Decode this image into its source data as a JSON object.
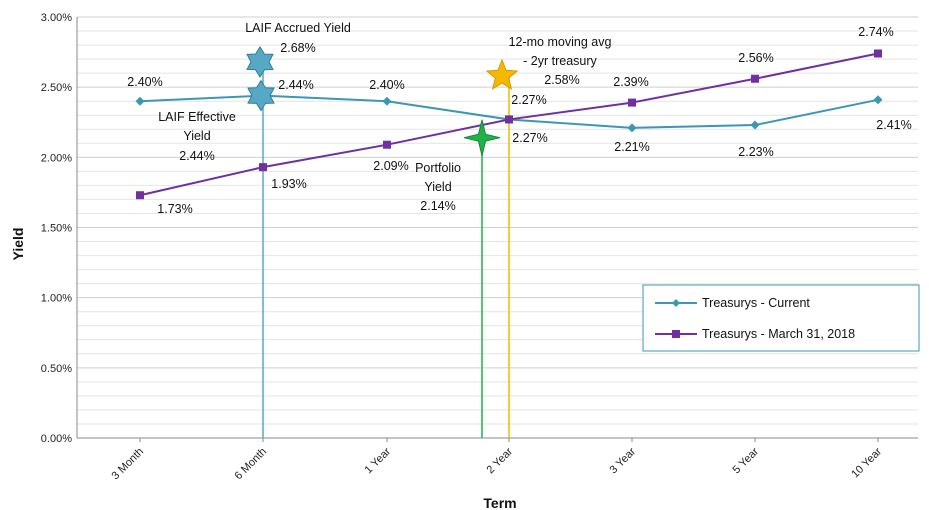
{
  "chart_data": {
    "type": "line",
    "xlabel": "Term",
    "ylabel": "Yield",
    "ylim": [
      0,
      3
    ],
    "y_ticks": [
      "0.00%",
      "0.50%",
      "1.00%",
      "1.50%",
      "2.00%",
      "2.50%",
      "3.00%"
    ],
    "y_tick_values": [
      0,
      0.5,
      1.0,
      1.5,
      2.0,
      2.5,
      3.0
    ],
    "categories": [
      "3 Month",
      "6 Month",
      "1 Year",
      "2 Year",
      "3 Year",
      "5 Year",
      "10 Year"
    ],
    "grid": "horizontal",
    "legend_position": "bottom-right",
    "series": [
      {
        "name": "Treasurys - Current",
        "color": "#3c97b4",
        "marker": "diamond",
        "values": [
          2.4,
          2.44,
          2.4,
          2.27,
          2.21,
          2.23,
          2.41
        ],
        "labels": [
          "2.40%",
          "2.44%",
          "2.40%",
          "2.27%",
          "2.21%",
          "2.23%",
          "2.41%"
        ]
      },
      {
        "name": "Treasurys - March 31, 2018",
        "color": "#7030a0",
        "marker": "square",
        "values": [
          1.73,
          1.93,
          2.09,
          2.27,
          2.39,
          2.56,
          2.74
        ],
        "labels": [
          "1.73%",
          "1.93%",
          "2.09%",
          "2.27%",
          "2.39%",
          "2.56%",
          "2.74%"
        ]
      }
    ],
    "annotations": [
      {
        "id": "laif-accrued",
        "text_lines": [
          "LAIF Accrued Yield",
          "2.68%"
        ],
        "value": 2.68,
        "at_category": "6 Month",
        "marker": "star-6",
        "color": "#56a8c4"
      },
      {
        "id": "laif-effective",
        "text_lines": [
          "LAIF Effective",
          "Yield",
          "2.44%"
        ],
        "value": 2.44,
        "at_category": "6 Month",
        "marker": "star-6",
        "color": "#56a8c4"
      },
      {
        "id": "portfolio-yield",
        "text_lines": [
          "Portfolio",
          "Yield",
          "2.14%"
        ],
        "value": 2.14,
        "at_category": "2 Year",
        "marker": "star-4",
        "color": "#22b04b"
      },
      {
        "id": "moving-avg",
        "text_lines": [
          "12-mo moving avg",
          "- 2yr treasury",
          "2.58%"
        ],
        "value": 2.58,
        "at_category": "2 Year",
        "marker": "star-5",
        "color": "#f5b800"
      }
    ]
  }
}
